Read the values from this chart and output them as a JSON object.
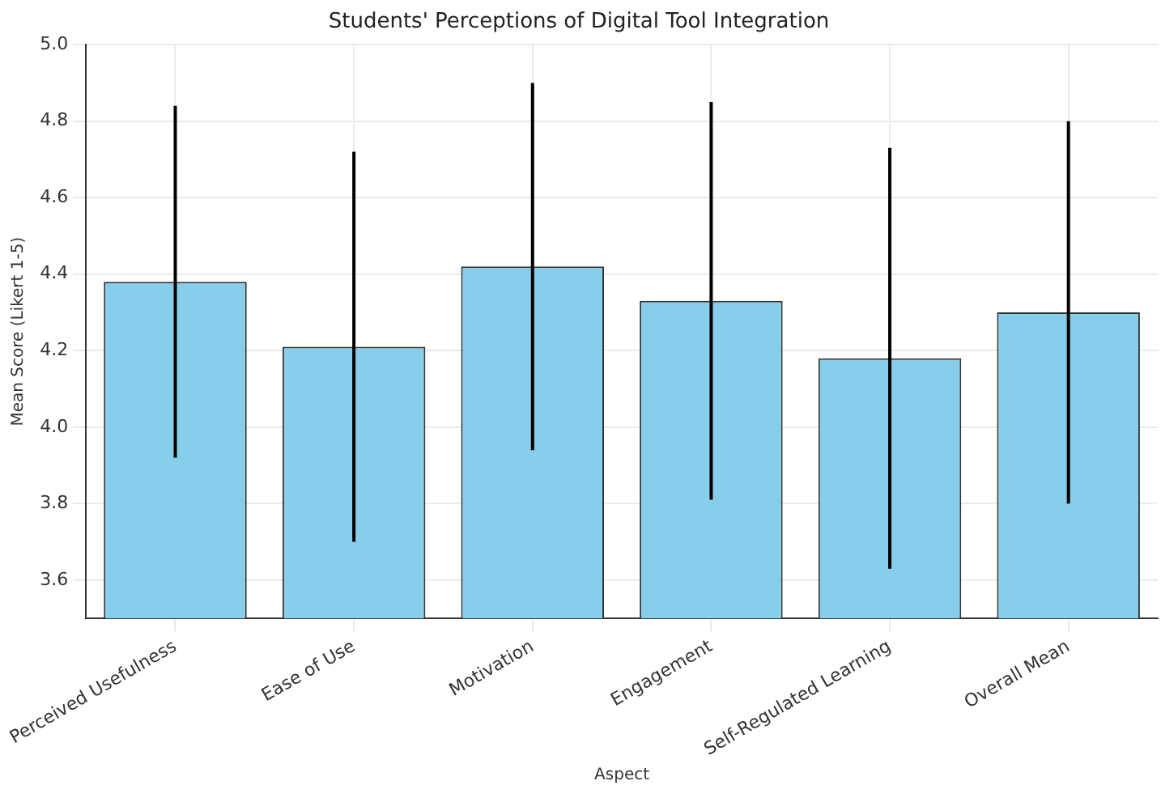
{
  "chart_data": {
    "type": "bar",
    "title": "Students' Perceptions of Digital Tool Integration",
    "xlabel": "Aspect",
    "ylabel": "Mean Score (Likert 1-5)",
    "categories": [
      "Perceived Usefulness",
      "Ease of Use",
      "Motivation",
      "Engagement",
      "Self-Regulated Learning",
      "Overall Mean"
    ],
    "values": [
      4.38,
      4.21,
      4.42,
      4.33,
      4.18,
      4.3
    ],
    "errors": [
      0.46,
      0.51,
      0.48,
      0.52,
      0.55,
      0.5
    ],
    "color": "#87ceeb",
    "ylim": [
      3.5,
      5.0
    ],
    "yticks": [
      3.6,
      3.8,
      {
        "value": 4.0,
        "label": "4.0"
      },
      4.2,
      4.4,
      4.6,
      4.8,
      {
        "value": 5.0,
        "label": "5.0"
      }
    ],
    "grid": true
  }
}
